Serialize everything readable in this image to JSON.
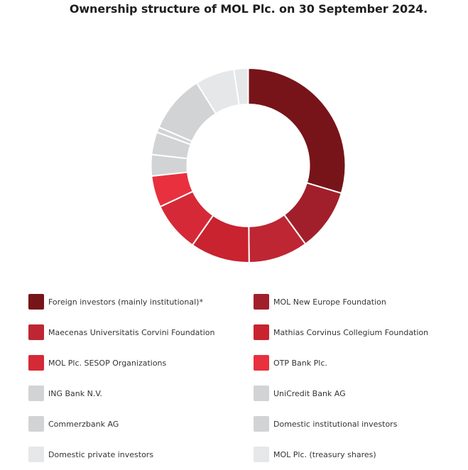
{
  "chart_data": {
    "type": "pie",
    "title": "Ownership structure of MOL Plc. on 30 September 2024.",
    "donut": true,
    "legend_position": "bottom",
    "slices": [
      {
        "label": "Foreign investors (mainly institutional)*",
        "value": 30.0,
        "color": "#771419"
      },
      {
        "label": "MOL New Europe Foundation",
        "value": 10.5,
        "color": "#a11f2b"
      },
      {
        "label": "Maecenas Universitatis Corvini Foundation",
        "value": 10.0,
        "color": "#be2633"
      },
      {
        "label": "Mathias Corvinus Collegium Foundation",
        "value": 10.0,
        "color": "#c8232f"
      },
      {
        "label": "MOL Plc. SESOP Organizations",
        "value": 8.4,
        "color": "#d62937"
      },
      {
        "label": "OTP Bank Plc.",
        "value": 5.3,
        "color": "#e8303e"
      },
      {
        "label": "ING Bank N.V.",
        "value": 3.6,
        "color": "#d2d3d5"
      },
      {
        "label": "UniCredit Bank AG",
        "value": 3.8,
        "color": "#d2d3d5"
      },
      {
        "label": "Commerzbank AG",
        "value": 0.9,
        "color": "#d2d3d5"
      },
      {
        "label": "Domestic institutional investors",
        "value": 9.8,
        "color": "#d2d3d5"
      },
      {
        "label": "Domestic private investors",
        "value": 6.6,
        "color": "#e6e7e8"
      },
      {
        "label": "MOL Plc. (treasury shares)",
        "value": 2.4,
        "color": "#e6e7e8"
      }
    ]
  }
}
